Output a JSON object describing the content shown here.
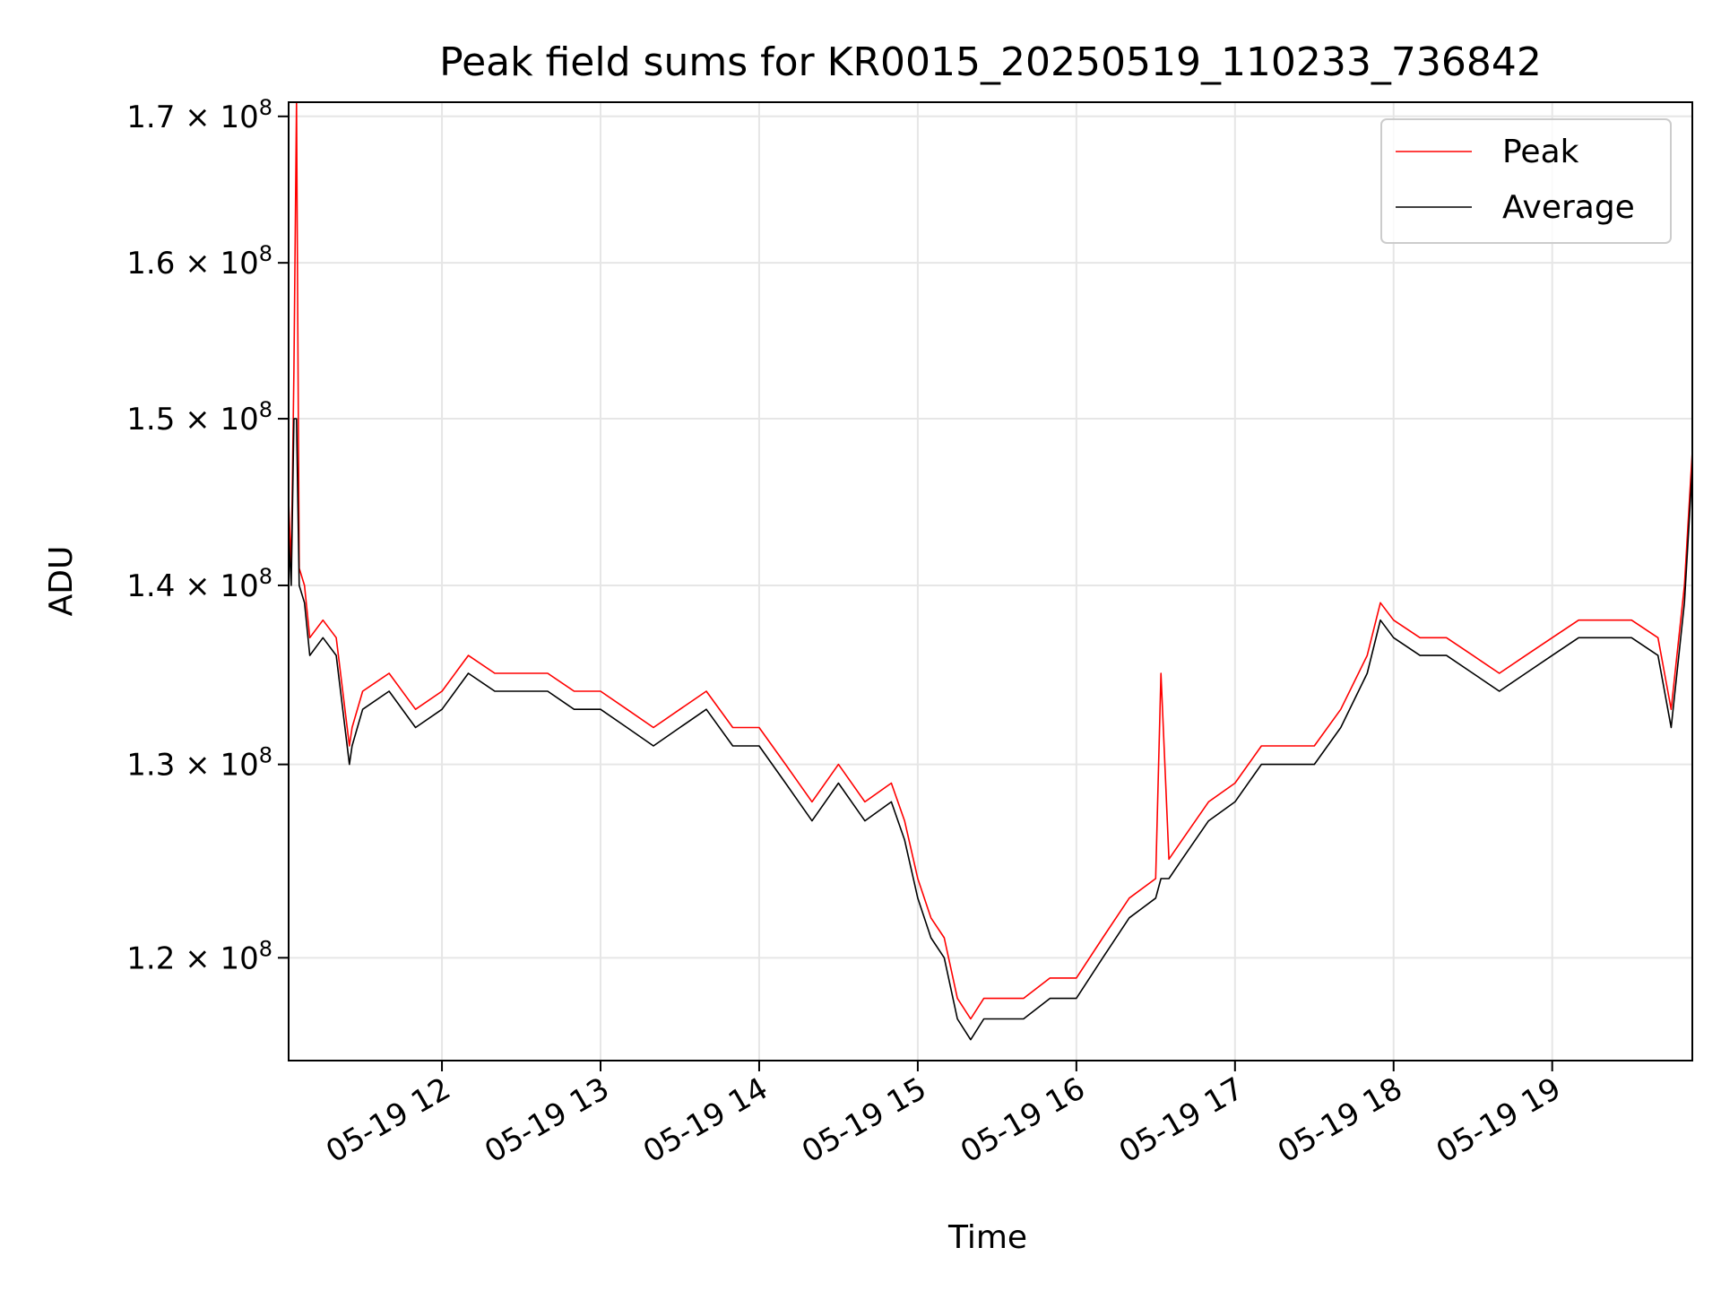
{
  "chart_data": {
    "type": "line",
    "title": "Peak field sums for KR0015_20250519_110233_736842",
    "xlabel": "Time",
    "ylabel": "ADU",
    "y_scale": "log",
    "ylim": [
      115000000,
      171000000
    ],
    "xlim": [
      "05-19 11:02",
      "05-19 19:53"
    ],
    "grid": true,
    "legend_position": "upper right",
    "colors": {
      "Peak": "#ff0000",
      "Average": "#000000",
      "grid": "#e6e6e6"
    },
    "x_ticks": [
      {
        "value": "05-19 12:00",
        "label": "05-19 12"
      },
      {
        "value": "05-19 13:00",
        "label": "05-19 13"
      },
      {
        "value": "05-19 14:00",
        "label": "05-19 14"
      },
      {
        "value": "05-19 15:00",
        "label": "05-19 15"
      },
      {
        "value": "05-19 16:00",
        "label": "05-19 16"
      },
      {
        "value": "05-19 17:00",
        "label": "05-19 17"
      },
      {
        "value": "05-19 18:00",
        "label": "05-19 18"
      },
      {
        "value": "05-19 19:00",
        "label": "05-19 19"
      }
    ],
    "y_ticks": [
      {
        "value": 120000000,
        "mantissa": "1.2",
        "base": "10",
        "exp": "8"
      },
      {
        "value": 130000000,
        "mantissa": "1.3",
        "base": "10",
        "exp": "8"
      },
      {
        "value": 140000000,
        "mantissa": "1.4",
        "base": "10",
        "exp": "8"
      },
      {
        "value": 150000000,
        "mantissa": "1.5",
        "base": "10",
        "exp": "8"
      },
      {
        "value": 160000000,
        "mantissa": "1.6",
        "base": "10",
        "exp": "8"
      },
      {
        "value": 170000000,
        "mantissa": "1.7",
        "base": "10",
        "exp": "8"
      }
    ],
    "series": [
      {
        "name": "Peak",
        "x": [
          "05-19 11:02",
          "05-19 11:03",
          "05-19 11:04",
          "05-19 11:05",
          "05-19 11:06",
          "05-19 11:08",
          "05-19 11:10",
          "05-19 11:15",
          "05-19 11:20",
          "05-19 11:25",
          "05-19 11:26",
          "05-19 11:30",
          "05-19 11:40",
          "05-19 11:50",
          "05-19 12:00",
          "05-19 12:10",
          "05-19 12:20",
          "05-19 12:30",
          "05-19 12:40",
          "05-19 12:50",
          "05-19 13:00",
          "05-19 13:10",
          "05-19 13:20",
          "05-19 13:30",
          "05-19 13:40",
          "05-19 13:50",
          "05-19 14:00",
          "05-19 14:10",
          "05-19 14:20",
          "05-19 14:30",
          "05-19 14:40",
          "05-19 14:50",
          "05-19 14:55",
          "05-19 15:00",
          "05-19 15:05",
          "05-19 15:10",
          "05-19 15:15",
          "05-19 15:20",
          "05-19 15:25",
          "05-19 15:30",
          "05-19 15:40",
          "05-19 15:50",
          "05-19 16:00",
          "05-19 16:10",
          "05-19 16:20",
          "05-19 16:30",
          "05-19 16:32",
          "05-19 16:35",
          "05-19 16:40",
          "05-19 16:50",
          "05-19 17:00",
          "05-19 17:10",
          "05-19 17:20",
          "05-19 17:30",
          "05-19 17:40",
          "05-19 17:50",
          "05-19 17:55",
          "05-19 18:00",
          "05-19 18:10",
          "05-19 18:20",
          "05-19 18:30",
          "05-19 18:40",
          "05-19 18:50",
          "05-19 19:00",
          "05-19 19:10",
          "05-19 19:20",
          "05-19 19:30",
          "05-19 19:40",
          "05-19 19:45",
          "05-19 19:50",
          "05-19 19:53"
        ],
        "values": [
          145000000,
          141000000,
          153000000,
          171000000,
          141000000,
          140000000,
          137000000,
          138000000,
          137000000,
          131000000,
          132000000,
          134000000,
          135000000,
          133000000,
          134000000,
          136000000,
          135000000,
          135000000,
          135000000,
          134000000,
          134000000,
          133000000,
          132000000,
          133000000,
          134000000,
          132000000,
          132000000,
          130000000,
          128000000,
          130000000,
          128000000,
          129000000,
          127000000,
          124000000,
          122000000,
          121000000,
          118000000,
          117000000,
          118000000,
          118000000,
          118000000,
          119000000,
          119000000,
          121000000,
          123000000,
          124000000,
          135000000,
          125000000,
          126000000,
          128000000,
          129000000,
          131000000,
          131000000,
          131000000,
          133000000,
          136000000,
          139000000,
          138000000,
          137000000,
          137000000,
          136000000,
          135000000,
          136000000,
          137000000,
          138000000,
          138000000,
          138000000,
          137000000,
          133000000,
          140000000,
          148000000
        ]
      },
      {
        "name": "Average",
        "x": [
          "05-19 11:02",
          "05-19 11:03",
          "05-19 11:04",
          "05-19 11:05",
          "05-19 11:06",
          "05-19 11:08",
          "05-19 11:10",
          "05-19 11:15",
          "05-19 11:20",
          "05-19 11:25",
          "05-19 11:26",
          "05-19 11:30",
          "05-19 11:40",
          "05-19 11:50",
          "05-19 12:00",
          "05-19 12:10",
          "05-19 12:20",
          "05-19 12:30",
          "05-19 12:40",
          "05-19 12:50",
          "05-19 13:00",
          "05-19 13:10",
          "05-19 13:20",
          "05-19 13:30",
          "05-19 13:40",
          "05-19 13:50",
          "05-19 14:00",
          "05-19 14:10",
          "05-19 14:20",
          "05-19 14:30",
          "05-19 14:40",
          "05-19 14:50",
          "05-19 14:55",
          "05-19 15:00",
          "05-19 15:05",
          "05-19 15:10",
          "05-19 15:15",
          "05-19 15:20",
          "05-19 15:25",
          "05-19 15:30",
          "05-19 15:40",
          "05-19 15:50",
          "05-19 16:00",
          "05-19 16:10",
          "05-19 16:20",
          "05-19 16:30",
          "05-19 16:32",
          "05-19 16:35",
          "05-19 16:40",
          "05-19 16:50",
          "05-19 17:00",
          "05-19 17:10",
          "05-19 17:20",
          "05-19 17:30",
          "05-19 17:40",
          "05-19 17:50",
          "05-19 17:55",
          "05-19 18:00",
          "05-19 18:10",
          "05-19 18:20",
          "05-19 18:30",
          "05-19 18:40",
          "05-19 18:50",
          "05-19 19:00",
          "05-19 19:10",
          "05-19 19:20",
          "05-19 19:30",
          "05-19 19:40",
          "05-19 19:45",
          "05-19 19:50",
          "05-19 19:53"
        ],
        "values": [
          143000000,
          140000000,
          150000000,
          150000000,
          140000000,
          139000000,
          136000000,
          137000000,
          136000000,
          130000000,
          131000000,
          133000000,
          134000000,
          132000000,
          133000000,
          135000000,
          134000000,
          134000000,
          134000000,
          133000000,
          133000000,
          132000000,
          131000000,
          132000000,
          133000000,
          131000000,
          131000000,
          129000000,
          127000000,
          129000000,
          127000000,
          128000000,
          126000000,
          123000000,
          121000000,
          120000000,
          117000000,
          116000000,
          117000000,
          117000000,
          117000000,
          118000000,
          118000000,
          120000000,
          122000000,
          123000000,
          124000000,
          124000000,
          125000000,
          127000000,
          128000000,
          130000000,
          130000000,
          130000000,
          132000000,
          135000000,
          138000000,
          137000000,
          136000000,
          136000000,
          135000000,
          134000000,
          135000000,
          136000000,
          137000000,
          137000000,
          137000000,
          136000000,
          132000000,
          139000000,
          147000000
        ]
      }
    ]
  }
}
